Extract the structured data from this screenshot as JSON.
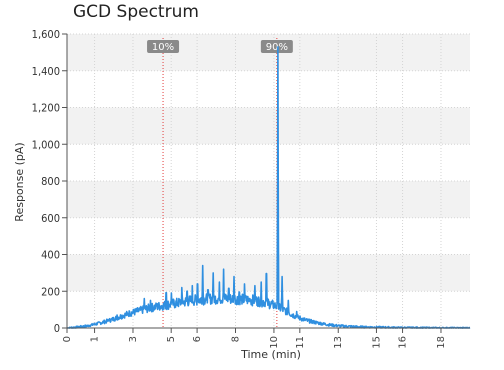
{
  "chart_data": {
    "type": "line",
    "title": "GCD Spectrum",
    "xlabel": "Time (min)",
    "ylabel": "Response (pA)",
    "xlim": [
      0,
      19.3
    ],
    "ylim": [
      0,
      1600
    ],
    "x_ticks": [
      "0",
      "1",
      "3",
      "5",
      "6",
      "8",
      "10",
      "11",
      "13",
      "15",
      "16",
      "18"
    ],
    "x_tick_values": [
      0,
      1.32,
      3.16,
      4.99,
      6.23,
      8.07,
      9.91,
      11.15,
      12.99,
      14.82,
      16.07,
      17.91
    ],
    "y_ticks": [
      "0",
      "200",
      "400",
      "600",
      "800",
      "1,000",
      "1,200",
      "1,400",
      "1,600"
    ],
    "y_tick_values": [
      0,
      200,
      400,
      600,
      800,
      1000,
      1200,
      1400,
      1600
    ],
    "grid": true,
    "markers": [
      {
        "label": "10%",
        "x": 4.6
      },
      {
        "label": "90%",
        "x": 10.05
      }
    ],
    "series": [
      {
        "color": "#2f8fe0",
        "points": [
          [
            0.0,
            0
          ],
          [
            0.5,
            5
          ],
          [
            1.0,
            12
          ],
          [
            1.5,
            25
          ],
          [
            2.0,
            40
          ],
          [
            2.5,
            60
          ],
          [
            3.0,
            80
          ],
          [
            3.5,
            95
          ],
          [
            4.0,
            110
          ],
          [
            4.5,
            120
          ],
          [
            5.0,
            130
          ],
          [
            5.5,
            140
          ],
          [
            6.0,
            150
          ],
          [
            6.5,
            155
          ],
          [
            7.0,
            160
          ],
          [
            7.5,
            160
          ],
          [
            8.0,
            158
          ],
          [
            8.5,
            155
          ],
          [
            9.0,
            150
          ],
          [
            9.5,
            140
          ],
          [
            10.0,
            120
          ],
          [
            10.5,
            90
          ],
          [
            11.0,
            60
          ],
          [
            11.5,
            40
          ],
          [
            12.0,
            28
          ],
          [
            12.5,
            18
          ],
          [
            13.0,
            12
          ],
          [
            13.5,
            9
          ],
          [
            14.0,
            6
          ],
          [
            15.0,
            4
          ],
          [
            16.0,
            2
          ],
          [
            17.0,
            1
          ],
          [
            18.0,
            0
          ],
          [
            19.3,
            0
          ]
        ],
        "peaks": [
          [
            1.4,
            20
          ],
          [
            2.0,
            45
          ],
          [
            2.4,
            70
          ],
          [
            2.7,
            60
          ],
          [
            3.0,
            90
          ],
          [
            3.3,
            75
          ],
          [
            3.7,
            160
          ],
          [
            4.0,
            150
          ],
          [
            4.3,
            130
          ],
          [
            4.75,
            240
          ],
          [
            5.0,
            190
          ],
          [
            5.25,
            180
          ],
          [
            5.5,
            220
          ],
          [
            5.75,
            250
          ],
          [
            6.0,
            230
          ],
          [
            6.25,
            300
          ],
          [
            6.5,
            340
          ],
          [
            6.75,
            260
          ],
          [
            7.0,
            300
          ],
          [
            7.3,
            250
          ],
          [
            7.5,
            320
          ],
          [
            7.75,
            270
          ],
          [
            8.0,
            280
          ],
          [
            8.25,
            245
          ],
          [
            8.5,
            240
          ],
          [
            8.75,
            200
          ],
          [
            9.0,
            230
          ],
          [
            9.3,
            250
          ],
          [
            9.55,
            370
          ],
          [
            10.1,
            1530
          ],
          [
            10.3,
            280
          ],
          [
            10.6,
            150
          ],
          [
            11.0,
            90
          ]
        ]
      }
    ]
  }
}
